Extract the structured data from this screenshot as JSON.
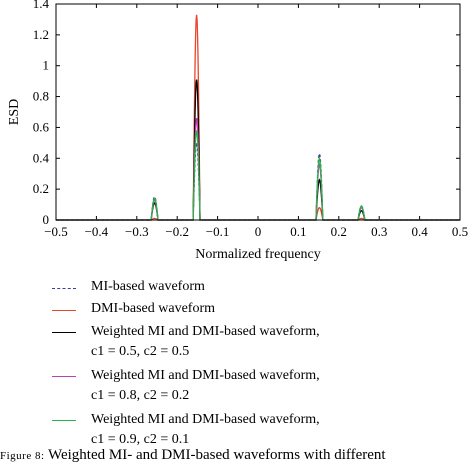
{
  "chart_data": {
    "type": "line",
    "xlabel": "Normalized frequency",
    "ylabel": "ESD",
    "xlim": [
      -0.5,
      0.5
    ],
    "ylim": [
      0,
      1.4
    ],
    "xticks": [
      "-0.5",
      "-0.4",
      "-0.3",
      "-0.2",
      "-0.1",
      "0",
      "0.1",
      "0.2",
      "0.3",
      "0.4",
      "0.5"
    ],
    "yticks": [
      "0",
      "0.2",
      "0.4",
      "0.6",
      "0.8",
      "1",
      "1.2",
      "1.4"
    ],
    "series": [
      {
        "name": "MI-based waveform",
        "color": "#3b3f9c",
        "style": "dashed",
        "peaks": [
          {
            "x": -0.256,
            "y": 0.15
          },
          {
            "x": -0.152,
            "y": 0.5
          },
          {
            "x": 0.152,
            "y": 0.43
          },
          {
            "x": 0.256,
            "y": 0.09
          }
        ]
      },
      {
        "name": "DMI-based waveform",
        "color": "#e8452c",
        "style": "solid",
        "peaks": [
          {
            "x": -0.256,
            "y": 0.01
          },
          {
            "x": -0.152,
            "y": 1.33
          },
          {
            "x": 0.152,
            "y": 0.08
          },
          {
            "x": 0.256,
            "y": 0.01
          }
        ]
      },
      {
        "name": "Weighted MI and DMI-based waveform,",
        "sub": "c1 = 0.5, c2 = 0.5",
        "color": "#000000",
        "style": "solid",
        "peaks": [
          {
            "x": -0.256,
            "y": 0.11
          },
          {
            "x": -0.152,
            "y": 0.91
          },
          {
            "x": 0.152,
            "y": 0.26
          },
          {
            "x": 0.256,
            "y": 0.06
          }
        ]
      },
      {
        "name": "Weighted MI and DMI-based waveform,",
        "sub": "c1 = 0.8, c2 = 0.2",
        "color": "#c03fb5",
        "style": "solid",
        "peaks": [
          {
            "x": -0.256,
            "y": 0.13
          },
          {
            "x": -0.152,
            "y": 0.66
          },
          {
            "x": 0.152,
            "y": 0.36
          },
          {
            "x": 0.256,
            "y": 0.08
          }
        ]
      },
      {
        "name": "Weighted MI and DMI-based waveform,",
        "sub": "c1 = 0.9, c2 = 0.1",
        "color": "#2db24a",
        "style": "solid",
        "peaks": [
          {
            "x": -0.256,
            "y": 0.14
          },
          {
            "x": -0.152,
            "y": 0.58
          },
          {
            "x": 0.152,
            "y": 0.4
          },
          {
            "x": 0.256,
            "y": 0.09
          }
        ]
      }
    ]
  },
  "caption": {
    "label": "Figure 8:",
    "text": " Weighted MI- and DMI-based waveforms with different"
  }
}
